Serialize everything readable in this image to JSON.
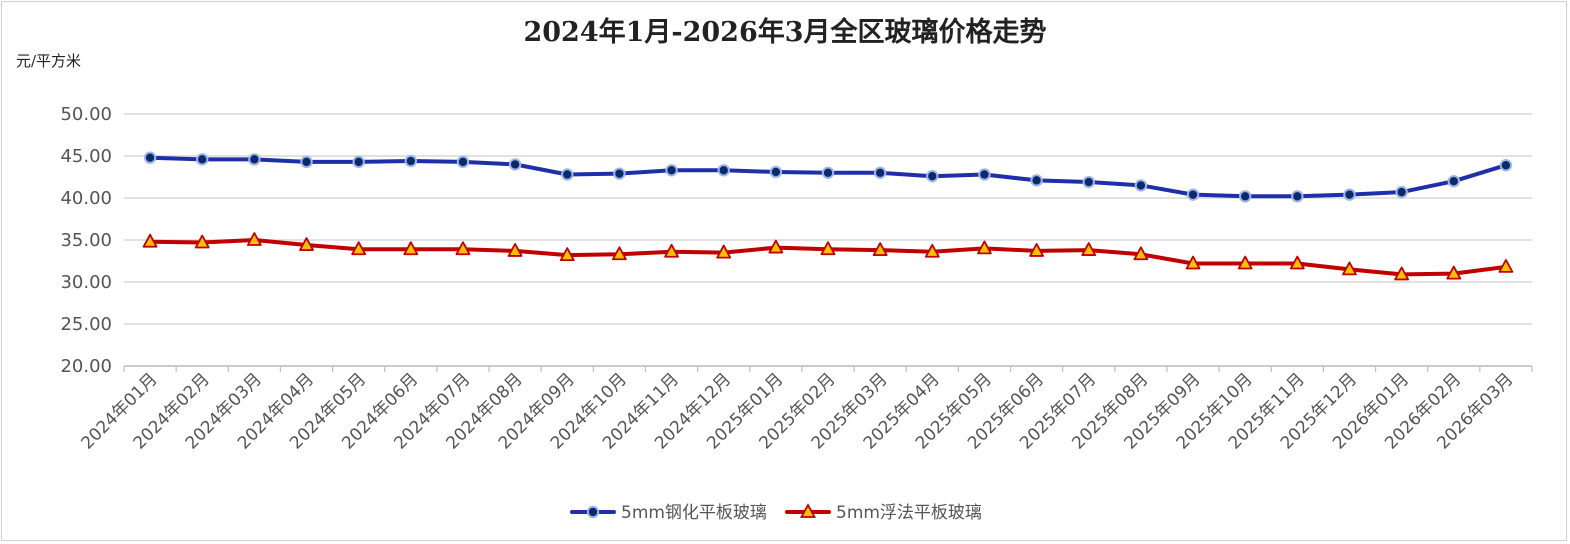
{
  "chart_data": {
    "type": "line",
    "title": "2024年1月-2026年3月全区玻璃价格走势",
    "ylabel": "元/平方米",
    "xlabel": "",
    "ylim": [
      20,
      50
    ],
    "yticks": [
      "20.00",
      "25.00",
      "30.00",
      "35.00",
      "40.00",
      "45.00",
      "50.00"
    ],
    "grid": true,
    "legend_position": "bottom-center",
    "categories": [
      "2024年01月",
      "2024年02月",
      "2024年03月",
      "2024年04月",
      "2024年05月",
      "2024年06月",
      "2024年07月",
      "2024年08月",
      "2024年09月",
      "2024年10月",
      "2024年11月",
      "2024年12月",
      "2025年01月",
      "2025年02月",
      "2025年03月",
      "2025年04月",
      "2025年05月",
      "2025年06月",
      "2025年07月",
      "2025年08月",
      "2025年09月",
      "2025年10月",
      "2025年11月",
      "2025年12月",
      "2026年01月",
      "2026年02月",
      "2026年03月"
    ],
    "series": [
      {
        "name": "5mm钢化平板玻璃",
        "color": "#1f2fa8",
        "marker_color": "#0a2a6b",
        "marker": "circle",
        "values": [
          44.8,
          44.6,
          44.6,
          44.3,
          44.3,
          44.4,
          44.3,
          44.0,
          42.8,
          42.9,
          43.3,
          43.3,
          43.1,
          43.0,
          43.0,
          42.6,
          42.8,
          42.1,
          41.9,
          41.5,
          40.4,
          40.2,
          40.2,
          40.4,
          40.7,
          42.0,
          43.9
        ]
      },
      {
        "name": "5mm浮法平板玻璃",
        "color": "#c00000",
        "marker_color": "#ffc000",
        "marker": "triangle",
        "values": [
          34.8,
          34.7,
          35.0,
          34.4,
          33.9,
          33.9,
          33.9,
          33.7,
          33.2,
          33.3,
          33.6,
          33.5,
          34.1,
          33.9,
          33.8,
          33.6,
          34.0,
          33.7,
          33.8,
          33.3,
          32.2,
          32.2,
          32.2,
          31.5,
          30.9,
          31.0,
          31.8
        ]
      }
    ]
  }
}
